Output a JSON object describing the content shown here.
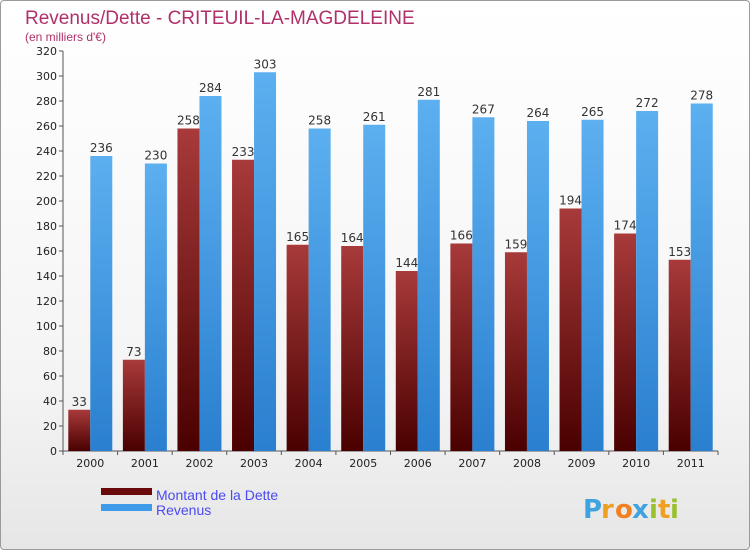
{
  "chart_data": {
    "type": "bar",
    "title": "Revenus/Dette - CRITEUIL-LA-MAGDELEINE",
    "subtitle": "(en milliers d'€)",
    "categories": [
      "2000",
      "2001",
      "2002",
      "2003",
      "2004",
      "2005",
      "2006",
      "2007",
      "2008",
      "2009",
      "2010",
      "2011"
    ],
    "series": [
      {
        "name": "Montant de la Dette",
        "color": "#7a1a1a",
        "values": [
          33,
          73,
          258,
          233,
          165,
          164,
          144,
          166,
          159,
          194,
          174,
          153
        ]
      },
      {
        "name": "Revenus",
        "color": "#3d9be9",
        "values": [
          236,
          230,
          284,
          303,
          258,
          261,
          281,
          267,
          264,
          265,
          272,
          278
        ]
      }
    ],
    "ylim": [
      0,
      320
    ],
    "yticks": [
      0,
      20,
      40,
      60,
      80,
      100,
      120,
      140,
      160,
      180,
      200,
      220,
      240,
      260,
      280,
      300,
      320
    ],
    "grid": false,
    "legend_position": "bottom-left"
  },
  "logo": {
    "letters": [
      "P",
      "r",
      "o",
      "x",
      "i",
      "t",
      "i"
    ],
    "colors": [
      "#3fa3e0",
      "#f0a020",
      "#f08020",
      "#3fa3e0",
      "#9ac030",
      "#f0a020",
      "#9ac030"
    ]
  }
}
